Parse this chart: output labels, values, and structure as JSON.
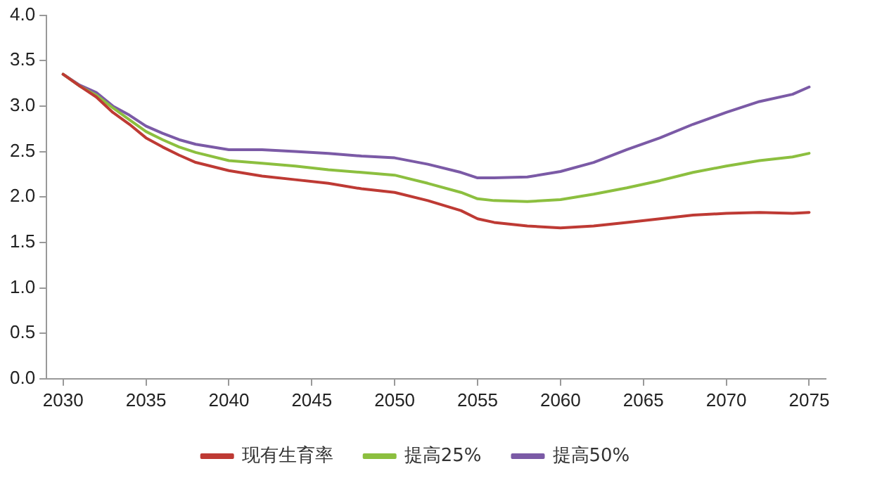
{
  "chart_data": {
    "type": "line",
    "x": [
      2030,
      2031,
      2032,
      2033,
      2034,
      2035,
      2036,
      2037,
      2038,
      2040,
      2042,
      2044,
      2046,
      2048,
      2050,
      2052,
      2054,
      2055,
      2056,
      2058,
      2060,
      2062,
      2064,
      2066,
      2068,
      2070,
      2072,
      2074,
      2075
    ],
    "series": [
      {
        "name": "现有生育率",
        "color": "#be3a34",
        "values": [
          3.35,
          3.22,
          3.1,
          2.93,
          2.8,
          2.65,
          2.55,
          2.46,
          2.38,
          2.29,
          2.23,
          2.19,
          2.15,
          2.09,
          2.05,
          1.96,
          1.85,
          1.76,
          1.72,
          1.68,
          1.66,
          1.68,
          1.72,
          1.76,
          1.8,
          1.82,
          1.83,
          1.82,
          1.83
        ]
      },
      {
        "name": "提高25%",
        "color": "#8cbf3f",
        "values": [
          3.35,
          3.22,
          3.12,
          2.98,
          2.85,
          2.72,
          2.63,
          2.55,
          2.49,
          2.4,
          2.37,
          2.34,
          2.3,
          2.27,
          2.24,
          2.15,
          2.05,
          1.98,
          1.96,
          1.95,
          1.97,
          2.03,
          2.1,
          2.18,
          2.27,
          2.34,
          2.4,
          2.44,
          2.48
        ]
      },
      {
        "name": "提高50%",
        "color": "#7b5aa6",
        "values": [
          3.35,
          3.23,
          3.15,
          3.0,
          2.9,
          2.78,
          2.7,
          2.63,
          2.58,
          2.52,
          2.52,
          2.5,
          2.48,
          2.45,
          2.43,
          2.36,
          2.27,
          2.21,
          2.21,
          2.22,
          2.28,
          2.38,
          2.52,
          2.65,
          2.8,
          2.93,
          3.05,
          3.13,
          3.21
        ]
      }
    ],
    "xlim": [
      2029,
      2076
    ],
    "xticks": [
      2030,
      2035,
      2040,
      2045,
      2050,
      2055,
      2060,
      2065,
      2070,
      2075
    ],
    "ylim": [
      0,
      4
    ],
    "yticks": [
      {
        "value": 0,
        "label": "0.0"
      },
      {
        "value": 0.5,
        "label": "0.5"
      },
      {
        "value": 1,
        "label": "1.0"
      },
      {
        "value": 1.5,
        "label": "1.5"
      },
      {
        "value": 2,
        "label": "2.0"
      },
      {
        "value": 2.5,
        "label": "2.5"
      },
      {
        "value": 3,
        "label": "3.0"
      },
      {
        "value": 3.5,
        "label": "3.5"
      },
      {
        "value": 4,
        "label": "4.0"
      }
    ],
    "grid": false,
    "legend": "bottom",
    "marker": "none",
    "line_style": "solid"
  }
}
